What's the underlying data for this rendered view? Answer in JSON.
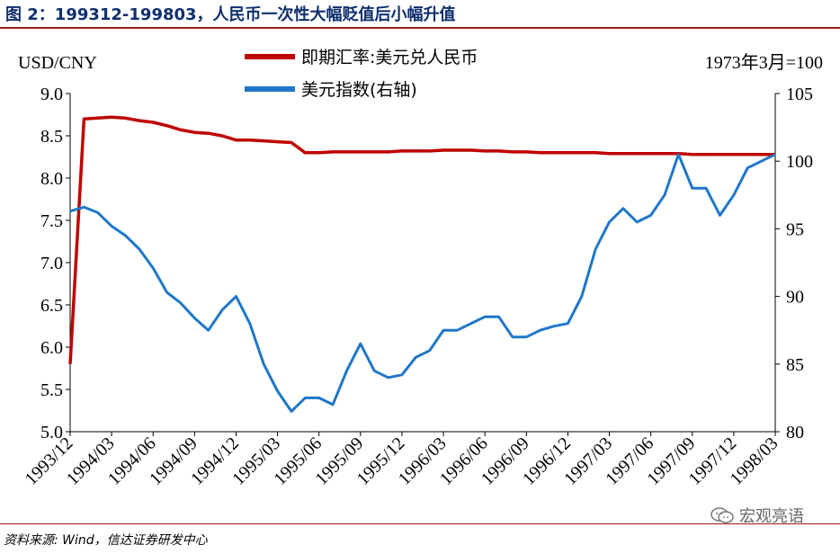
{
  "title": "图 2：199312-199803，人民币一次性大幅贬值后小幅升值",
  "source": "资料来源: Wind，信达证券研发中心",
  "watermark": "宏观亮语",
  "colors": {
    "usdcny": "#c00000",
    "usd_index": "#1f77c8",
    "title": "#0f2f6e",
    "rule": "#9a1b1f"
  },
  "chart_data": {
    "type": "line",
    "left_axis_label": "USD/CNY",
    "right_axis_label": "1973年3月=100",
    "left_ylim": [
      5.0,
      9.0
    ],
    "right_ylim": [
      80,
      105
    ],
    "left_ticks": [
      "9.0",
      "8.5",
      "8.0",
      "7.5",
      "7.0",
      "6.5",
      "6.0",
      "5.5",
      "5.0"
    ],
    "right_ticks": [
      "105",
      "100",
      "95",
      "90",
      "85",
      "80"
    ],
    "x_ticks": [
      "1993/12",
      "1994/03",
      "1994/06",
      "1994/09",
      "1994/12",
      "1995/03",
      "1995/06",
      "1995/09",
      "1995/12",
      "1996/03",
      "1996/06",
      "1996/09",
      "1996/12",
      "1997/03",
      "1997/06",
      "1997/09",
      "1997/12",
      "1998/03"
    ],
    "x_range": [
      "1993-12",
      "1998-03"
    ],
    "grid": false,
    "legend_position": "top-center",
    "series": [
      {
        "name": "即期汇率:美元兑人民币",
        "axis": "left",
        "x": [
          "1993-12",
          "1994-01",
          "1994-02",
          "1994-03",
          "1994-04",
          "1994-05",
          "1994-06",
          "1994-07",
          "1994-08",
          "1994-09",
          "1994-10",
          "1994-11",
          "1994-12",
          "1995-01",
          "1995-02",
          "1995-03",
          "1995-04",
          "1995-05",
          "1995-06",
          "1995-07",
          "1995-08",
          "1995-09",
          "1995-10",
          "1995-11",
          "1995-12",
          "1996-01",
          "1996-02",
          "1996-03",
          "1996-04",
          "1996-05",
          "1996-06",
          "1996-07",
          "1996-08",
          "1996-09",
          "1996-10",
          "1996-11",
          "1996-12",
          "1997-01",
          "1997-02",
          "1997-03",
          "1997-04",
          "1997-05",
          "1997-06",
          "1997-07",
          "1997-08",
          "1997-09",
          "1997-10",
          "1997-11",
          "1997-12",
          "1998-01",
          "1998-02",
          "1998-03"
        ],
        "values": [
          5.8,
          8.7,
          8.71,
          8.72,
          8.71,
          8.68,
          8.66,
          8.62,
          8.57,
          8.54,
          8.53,
          8.5,
          8.45,
          8.45,
          8.44,
          8.43,
          8.42,
          8.3,
          8.3,
          8.31,
          8.31,
          8.31,
          8.31,
          8.31,
          8.32,
          8.32,
          8.32,
          8.33,
          8.33,
          8.33,
          8.32,
          8.32,
          8.31,
          8.31,
          8.3,
          8.3,
          8.3,
          8.3,
          8.3,
          8.29,
          8.29,
          8.29,
          8.29,
          8.29,
          8.29,
          8.28,
          8.28,
          8.28,
          8.28,
          8.28,
          8.28,
          8.28
        ]
      },
      {
        "name": "美元指数(右轴)",
        "axis": "right",
        "x": [
          "1993-12",
          "1994-01",
          "1994-02",
          "1994-03",
          "1994-04",
          "1994-05",
          "1994-06",
          "1994-07",
          "1994-08",
          "1994-09",
          "1994-10",
          "1994-11",
          "1994-12",
          "1995-01",
          "1995-02",
          "1995-03",
          "1995-04",
          "1995-05",
          "1995-06",
          "1995-07",
          "1995-08",
          "1995-09",
          "1995-10",
          "1995-11",
          "1995-12",
          "1996-01",
          "1996-02",
          "1996-03",
          "1996-04",
          "1996-05",
          "1996-06",
          "1996-07",
          "1996-08",
          "1996-09",
          "1996-10",
          "1996-11",
          "1996-12",
          "1997-01",
          "1997-02",
          "1997-03",
          "1997-04",
          "1997-05",
          "1997-06",
          "1997-07",
          "1997-08",
          "1997-09",
          "1997-10",
          "1997-11",
          "1997-12",
          "1998-01",
          "1998-02",
          "1998-03"
        ],
        "values": [
          96.3,
          96.6,
          96.2,
          95.2,
          94.5,
          93.5,
          92.1,
          90.3,
          89.5,
          88.4,
          87.5,
          89.0,
          90.0,
          88.0,
          85.0,
          83.0,
          81.5,
          82.5,
          82.5,
          82.0,
          84.5,
          86.5,
          84.5,
          84.0,
          84.2,
          85.5,
          86.0,
          87.5,
          87.5,
          88.0,
          88.5,
          88.5,
          87.0,
          87.0,
          87.5,
          87.8,
          88.0,
          90.0,
          93.5,
          95.5,
          96.5,
          95.5,
          96.0,
          97.5,
          100.5,
          98.0,
          98.0,
          96.0,
          97.5,
          99.5,
          100.0,
          100.5
        ]
      }
    ]
  }
}
